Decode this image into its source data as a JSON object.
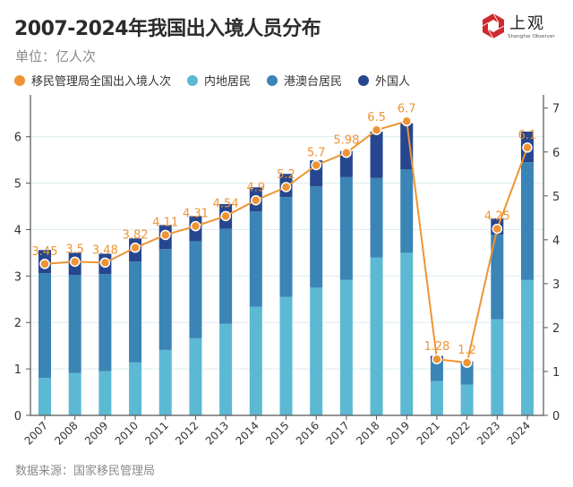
{
  "header": {
    "title": "2007-2024年我国出入境人员分布",
    "subtitle": "单位：亿人次",
    "logo_text": "上观",
    "logo_subtext": "Shanghai Observer",
    "logo_icon": "hexagon-shutter-icon"
  },
  "footer": {
    "source": "数据来源：国家移民管理局"
  },
  "colors": {
    "total": "#ee9434",
    "mainland": "#5cb9d3",
    "hmt": "#3a84b6",
    "foreign": "#26478f",
    "logo": "#d0282e"
  },
  "chart_data": {
    "type": "bar",
    "stacked": true,
    "title": "2007-2024年我国出入境人员分布",
    "unit": "亿人次",
    "categories": [
      "2007",
      "2008",
      "2009",
      "2010",
      "2011",
      "2012",
      "2013",
      "2014",
      "2015",
      "2016",
      "2017",
      "2018",
      "2019",
      "2021",
      "2022",
      "2023",
      "2024"
    ],
    "legend": [
      {
        "name": "移民管理局全国出入境人次",
        "key": "total",
        "marker": "circle"
      },
      {
        "name": "内地居民",
        "key": "mainland",
        "marker": "circle"
      },
      {
        "name": "港澳台居民",
        "key": "hmt",
        "marker": "circle"
      },
      {
        "name": "外国人",
        "key": "foreign",
        "marker": "circle"
      }
    ],
    "legend_position": "top-left",
    "series": [
      {
        "name": "内地居民",
        "key": "mainland",
        "axis": "left",
        "values": [
          0.81,
          0.91,
          0.95,
          1.14,
          1.41,
          1.66,
          1.97,
          2.34,
          2.55,
          2.75,
          2.92,
          3.4,
          3.5,
          0.74,
          0.66,
          2.07,
          2.92
        ]
      },
      {
        "name": "港澳台居民",
        "key": "hmt",
        "axis": "left",
        "values": [
          2.25,
          2.11,
          2.09,
          2.17,
          2.17,
          2.09,
          2.05,
          2.05,
          2.15,
          2.18,
          2.21,
          1.71,
          1.8,
          0.44,
          0.48,
          1.82,
          2.53
        ]
      },
      {
        "name": "外国人",
        "key": "foreign",
        "axis": "left",
        "values": [
          0.5,
          0.48,
          0.44,
          0.5,
          0.52,
          0.54,
          0.53,
          0.52,
          0.5,
          0.56,
          0.56,
          1.0,
          0.99,
          0.1,
          0.02,
          0.35,
          0.66
        ]
      },
      {
        "name": "移民管理局全国出入境人次",
        "key": "total",
        "type": "line",
        "axis": "right",
        "values": [
          3.45,
          3.5,
          3.48,
          3.82,
          4.11,
          4.31,
          4.54,
          4.9,
          5.2,
          5.7,
          5.98,
          6.5,
          6.7,
          1.28,
          1.2,
          4.25,
          6.1
        ],
        "labels": [
          "3.45",
          "3.5",
          "3.48",
          "3.82",
          "4.11",
          "4.31",
          "4.54",
          "4.9",
          "5.2",
          "5.7",
          "5.98",
          "6.5",
          "6.7",
          "1.28",
          "1.2",
          "4.25",
          "6.1"
        ]
      }
    ],
    "left_axis": {
      "ylim": [
        0,
        6.9
      ],
      "ticks": [
        0,
        1,
        2,
        3,
        4,
        5,
        6
      ]
    },
    "right_axis": {
      "ylim": [
        0,
        7.3
      ],
      "ticks": [
        0,
        1,
        2,
        3,
        4,
        5,
        6,
        7
      ]
    },
    "xlabel": "",
    "ylabel": "",
    "grid": true
  }
}
